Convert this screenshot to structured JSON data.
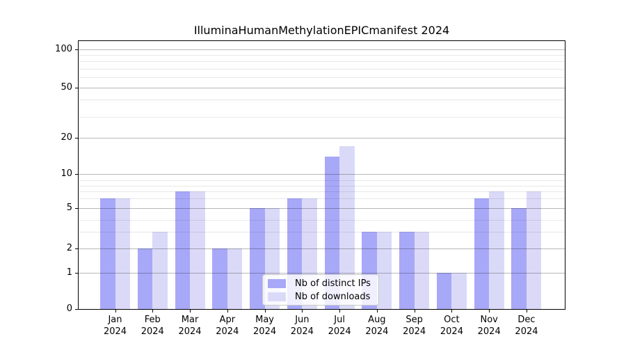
{
  "figure": {
    "title": "IlluminaHumanMethylationEPICmanifest 2024"
  },
  "legend": {
    "items": [
      {
        "label": "Nb of distinct IPs",
        "color": "#a8a8f8"
      },
      {
        "label": "Nb of downloads",
        "color": "#dadaf8"
      }
    ]
  },
  "chart_data": {
    "type": "bar",
    "title": "IlluminaHumanMethylationEPICmanifest 2024",
    "year": "2024",
    "months": [
      "Jan",
      "Feb",
      "Mar",
      "Apr",
      "May",
      "Jun",
      "Jul",
      "Aug",
      "Sep",
      "Oct",
      "Nov",
      "Dec"
    ],
    "categories": [
      "Jan 2024",
      "Feb 2024",
      "Mar 2024",
      "Apr 2024",
      "May 2024",
      "Jun 2024",
      "Jul 2024",
      "Aug 2024",
      "Sep 2024",
      "Oct 2024",
      "Nov 2024",
      "Dec 2024"
    ],
    "series": [
      {
        "name": "Nb of distinct IPs",
        "color": "#a8a8f8",
        "values": [
          6,
          2,
          7,
          2,
          5,
          6,
          14,
          3,
          3,
          1,
          6,
          5
        ]
      },
      {
        "name": "Nb of downloads",
        "color": "#dadaf8",
        "values": [
          6,
          3,
          7,
          2,
          5,
          6,
          17,
          3,
          3,
          1,
          7,
          7
        ]
      }
    ],
    "xlabel": "",
    "ylabel": "",
    "yscale": "log-like (0,1,2,5,10,20,50,100)",
    "y_ticks": [
      0,
      1,
      2,
      5,
      10,
      20,
      50,
      100
    ],
    "y_tick_labels": [
      "0",
      "1",
      "2",
      "5",
      "10",
      "20",
      "50",
      "100"
    ],
    "y_minor_gridlines": [
      3,
      4,
      6,
      7,
      8,
      9,
      30,
      40,
      60,
      70,
      80,
      90
    ],
    "ylim": [
      0,
      130
    ],
    "grid": "on, drawn above bars",
    "legend_position": "lower center"
  }
}
